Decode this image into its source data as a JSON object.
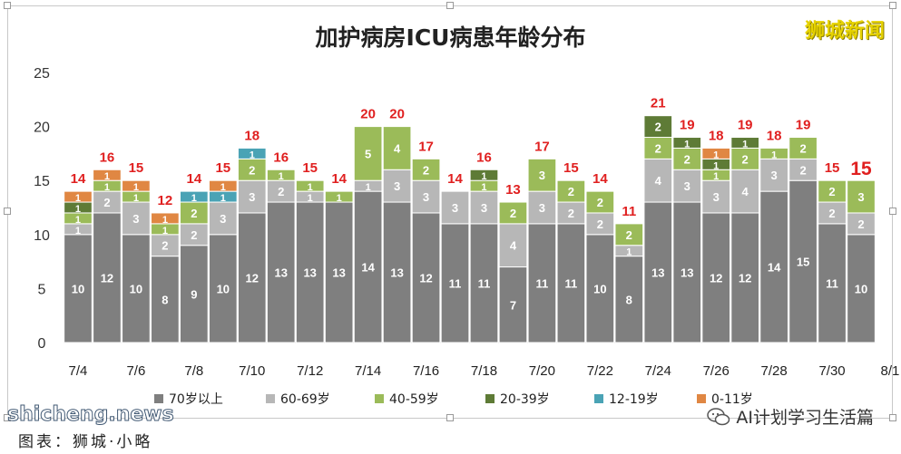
{
  "chart_data": {
    "type": "bar",
    "stacked": true,
    "title": "加护病房ICU病患年龄分布",
    "categories": [
      "7/4",
      "7/5",
      "7/6",
      "7/7",
      "7/8",
      "7/9",
      "7/10",
      "7/11",
      "7/12",
      "7/13",
      "7/14",
      "7/15",
      "7/16",
      "7/17",
      "7/18",
      "7/19",
      "7/20",
      "7/21",
      "7/22",
      "7/23",
      "7/24",
      "7/25",
      "7/26",
      "7/27",
      "7/28",
      "7/29",
      "7/30",
      "7/31"
    ],
    "x_tick_labels": [
      "7/4",
      "7/6",
      "7/8",
      "7/10",
      "7/12",
      "7/14",
      "7/16",
      "7/18",
      "7/20",
      "7/22",
      "7/24",
      "7/26",
      "7/28",
      "7/30",
      "8/1"
    ],
    "ylim": [
      0,
      25
    ],
    "yticks": [
      "0",
      "5",
      "10",
      "15",
      "20",
      "25"
    ],
    "grid": false,
    "legend_position": "bottom",
    "series": [
      {
        "name": "70岁以上",
        "color": "#7f7f7f",
        "label_color": "#ffffff",
        "values": [
          10,
          12,
          10,
          8,
          9,
          10,
          12,
          13,
          13,
          13,
          14,
          13,
          12,
          11,
          11,
          7,
          11,
          11,
          10,
          8,
          13,
          13,
          12,
          12,
          14,
          15,
          11,
          10
        ]
      },
      {
        "name": "60-69岁",
        "color": "#b7b7b7",
        "label_color": "#ffffff",
        "values": [
          1,
          2,
          3,
          2,
          2,
          3,
          3,
          2,
          1,
          0,
          1,
          3,
          3,
          3,
          3,
          4,
          3,
          2,
          2,
          1,
          4,
          3,
          3,
          4,
          3,
          2,
          2,
          2
        ]
      },
      {
        "name": "40-59岁",
        "color": "#9bbb59",
        "label_color": "#ffffff",
        "values": [
          1,
          1,
          1,
          1,
          2,
          0,
          2,
          1,
          1,
          1,
          5,
          4,
          2,
          0,
          1,
          2,
          3,
          2,
          2,
          2,
          2,
          2,
          1,
          2,
          1,
          2,
          2,
          3
        ]
      },
      {
        "name": "20-39岁",
        "color": "#5e7b36",
        "label_color": "#ffffff",
        "values": [
          1,
          0,
          0,
          0,
          0,
          0,
          0,
          0,
          0,
          0,
          0,
          0,
          0,
          0,
          1,
          0,
          0,
          0,
          0,
          0,
          2,
          1,
          1,
          1,
          0,
          0,
          0,
          0
        ]
      },
      {
        "name": "12-19岁",
        "color": "#4aa3b5",
        "label_color": "#ffffff",
        "values": [
          0,
          0,
          0,
          0,
          1,
          1,
          1,
          0,
          0,
          0,
          0,
          0,
          0,
          0,
          0,
          0,
          0,
          0,
          0,
          0,
          0,
          0,
          0,
          0,
          0,
          0,
          0,
          0
        ]
      },
      {
        "name": "0-11岁",
        "color": "#e08743",
        "label_color": "#ffffff",
        "values": [
          1,
          1,
          1,
          1,
          0,
          1,
          0,
          0,
          0,
          0,
          0,
          0,
          0,
          0,
          0,
          0,
          0,
          0,
          0,
          0,
          0,
          0,
          1,
          0,
          0,
          0,
          0,
          0
        ]
      }
    ],
    "totals": [
      14,
      16,
      15,
      12,
      14,
      15,
      18,
      16,
      15,
      14,
      20,
      20,
      17,
      14,
      16,
      13,
      17,
      15,
      14,
      11,
      21,
      19,
      18,
      19,
      18,
      19,
      15,
      15
    ],
    "total_label_color": "#e02020"
  },
  "brand": "狮城新闻",
  "watermark": {
    "site": "shicheng.news",
    "caption": "图表：狮城·小略",
    "wechat_account": "AI计划学习生活篇"
  }
}
